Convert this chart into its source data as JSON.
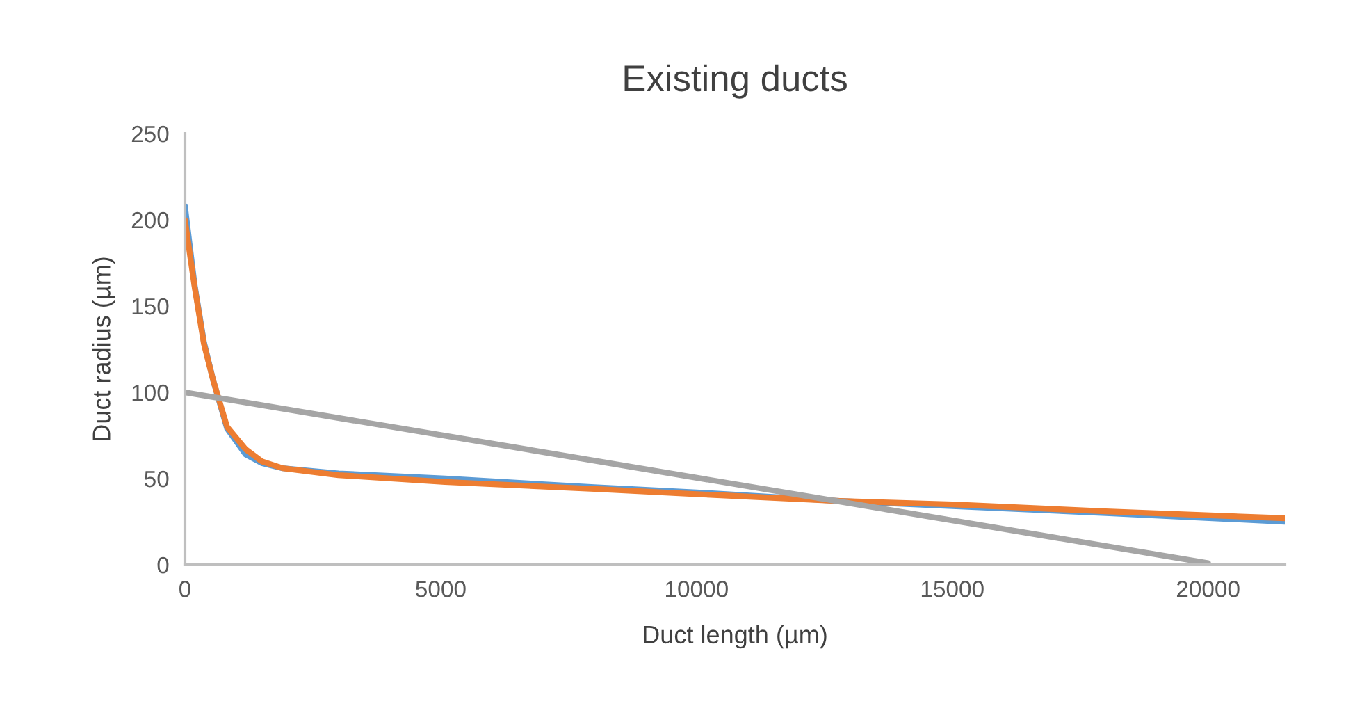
{
  "chart_data": {
    "type": "line",
    "title": "Existing ducts",
    "xlabel": "Duct length (µm)",
    "ylabel": "Duct radius (µm)",
    "series": [
      {
        "color": "#5b9bd5",
        "x": [
          0,
          190,
          372,
          552,
          824,
          1187,
          1500,
          1911,
          3000,
          5082,
          8000,
          10000,
          12800,
          15000,
          18000,
          21500
        ],
        "values": [
          208,
          162,
          129,
          107,
          79,
          64,
          59,
          56,
          53,
          50,
          45,
          42,
          37,
          34,
          30,
          25
        ]
      },
      {
        "color": "#ed7d31",
        "x": [
          0,
          190,
          372,
          552,
          824,
          1187,
          1500,
          1911,
          3000,
          5082,
          8000,
          10000,
          12800,
          15000,
          18000,
          21500
        ],
        "values": [
          200,
          161,
          128,
          107,
          80,
          67,
          60,
          56,
          52,
          48,
          44,
          41,
          37,
          35,
          31,
          27
        ]
      },
      {
        "color": "#a5a5a5",
        "x": [
          0,
          20000
        ],
        "values": [
          100,
          1
        ]
      }
    ],
    "xlim": [
      0,
      21500
    ],
    "xticks": [
      0,
      5000,
      10000,
      15000,
      20000
    ],
    "ylim": [
      0,
      250
    ],
    "yticks": [
      0,
      50,
      100,
      150,
      200,
      250
    ],
    "grid": false,
    "marker": "none",
    "line_style": "solid"
  }
}
